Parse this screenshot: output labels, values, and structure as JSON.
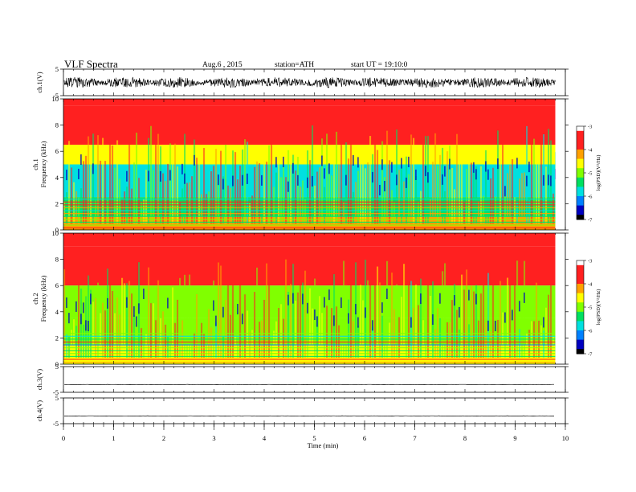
{
  "header": {
    "title": "VLF  Spectra",
    "date": "Aug.6   , 2015",
    "station": "station=ATH",
    "start": "start  UT =    19:10:0"
  },
  "chart_data": [
    {
      "id": "ch1-waveform",
      "type": "line",
      "ylabel": "ch.1(V)",
      "ylim": [
        -5,
        5
      ],
      "yticks": [
        "5",
        "-5"
      ],
      "x_end_min": 9.8,
      "amplitude_range_v": [
        -2.0,
        2.0
      ],
      "color": "#000000"
    },
    {
      "id": "ch1-spectrogram",
      "type": "heatmap",
      "ylabel": "ch.1\nFrequency  (kHz)",
      "ylabel_lines": [
        "ch.1",
        "Frequency  (kHz)"
      ],
      "ylim": [
        0,
        10
      ],
      "yticks": [
        "0",
        "2",
        "4",
        "6",
        "8",
        "10"
      ],
      "xlim": [
        0,
        9.8
      ],
      "colorbar": {
        "label": "log(PSD)(V²/Hz)",
        "range": [
          -7,
          -3
        ],
        "ticks": [
          "-3",
          "-4",
          "-5",
          "-6",
          "-7"
        ],
        "colors": [
          "#ffffff",
          "#ff2020",
          "#ff2020",
          "#ffa000",
          "#ffff00",
          "#80ff00",
          "#00e060",
          "#00e0e0",
          "#0080ff",
          "#0000c0",
          "#000000"
        ]
      },
      "bands": [
        {
          "from_khz": 9.5,
          "to_khz": 10.0,
          "log_psd": -3.4
        },
        {
          "from_khz": 6.5,
          "to_khz": 9.5,
          "log_psd": -3.7
        },
        {
          "from_khz": 5.0,
          "to_khz": 6.5,
          "log_psd": -4.8
        },
        {
          "from_khz": 2.5,
          "to_khz": 5.0,
          "log_psd": -5.9
        },
        {
          "from_khz": 1.0,
          "to_khz": 2.5,
          "log_psd": -5.3
        },
        {
          "from_khz": 0.0,
          "to_khz": 1.0,
          "log_psd": -4.2
        }
      ]
    },
    {
      "id": "ch2-spectrogram",
      "type": "heatmap",
      "ylabel": "ch.2\nFrequency  (kHz)",
      "ylabel_lines": [
        "ch.2",
        "Frequency  (kHz)"
      ],
      "ylim": [
        0,
        10
      ],
      "yticks": [
        "0",
        "2",
        "4",
        "6",
        "8",
        "10"
      ],
      "xlim": [
        0,
        9.8
      ],
      "colorbar": {
        "label": "log(PSD)(V²/Hz)",
        "range": [
          -7,
          -3
        ],
        "ticks": [
          "-3",
          "-4",
          "-5",
          "-6",
          "-7"
        ],
        "colors": [
          "#ffffff",
          "#ff2020",
          "#ff2020",
          "#ffa000",
          "#ffff00",
          "#80ff00",
          "#00e060",
          "#00e0e0",
          "#0080ff",
          "#0000c0",
          "#000000"
        ]
      },
      "bands": [
        {
          "from_khz": 9.0,
          "to_khz": 10.0,
          "log_psd": -3.5
        },
        {
          "from_khz": 6.0,
          "to_khz": 9.0,
          "log_psd": -4.0
        },
        {
          "from_khz": 3.5,
          "to_khz": 6.0,
          "log_psd": -5.2
        },
        {
          "from_khz": 1.5,
          "to_khz": 3.5,
          "log_psd": -5.0
        },
        {
          "from_khz": 0.0,
          "to_khz": 1.5,
          "log_psd": -4.4
        }
      ]
    },
    {
      "id": "ch3-waveform",
      "type": "line",
      "ylabel": "ch.3(V)",
      "ylim": [
        -5,
        5
      ],
      "yticks": [
        "5",
        "-5"
      ],
      "x_end_min": 9.8,
      "baseline_v": -2.0,
      "color": "#000000"
    },
    {
      "id": "ch4-waveform",
      "type": "line",
      "ylabel": "ch.4(V)",
      "ylim": [
        -5,
        5
      ],
      "yticks": [
        "5",
        "-5"
      ],
      "x_end_min": 9.8,
      "baseline_v": -2.0,
      "color": "#000000"
    }
  ],
  "x_axis": {
    "label": "Time  (min)",
    "range": [
      0,
      10
    ],
    "ticks": [
      "0",
      "1",
      "2",
      "3",
      "4",
      "5",
      "6",
      "7",
      "8",
      "9",
      "10"
    ]
  }
}
